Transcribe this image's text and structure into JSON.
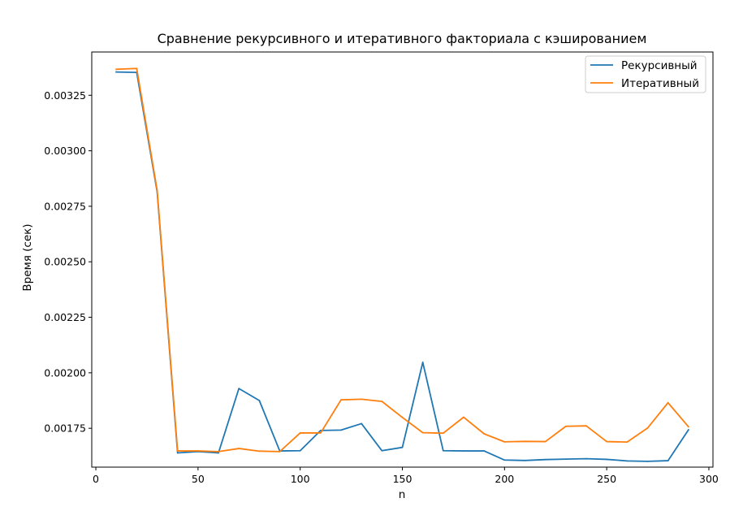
{
  "chart_data": {
    "type": "line",
    "title": "Сравнение рекурсивного и итеративного факториала с кэшированием",
    "xlabel": "n",
    "ylabel": "Время (сек)",
    "xlim": [
      -2,
      302
    ],
    "ylim": [
      0.001575,
      0.003445
    ],
    "x_ticks": [
      0,
      50,
      100,
      150,
      200,
      250,
      300
    ],
    "x_tick_labels": [
      "0",
      "50",
      "100",
      "150",
      "200",
      "250",
      "300"
    ],
    "y_ticks": [
      0.00175,
      0.002,
      0.00225,
      0.0025,
      0.00275,
      0.003,
      0.00325
    ],
    "y_tick_labels": [
      "0.00175",
      "0.00200",
      "0.00225",
      "0.00250",
      "0.00275",
      "0.00300",
      "0.00325"
    ],
    "grid": false,
    "legend_position": "top-right",
    "x": [
      10,
      20,
      30,
      40,
      50,
      60,
      70,
      80,
      90,
      100,
      110,
      120,
      130,
      140,
      150,
      160,
      170,
      180,
      190,
      200,
      210,
      220,
      230,
      240,
      250,
      260,
      270,
      280,
      290
    ],
    "series": [
      {
        "name": "Рекурсивный",
        "color": "#1f77b4",
        "values": [
          0.003355,
          0.003353,
          0.002815,
          0.001639,
          0.001645,
          0.001639,
          0.001929,
          0.001875,
          0.001648,
          0.001649,
          0.00174,
          0.001742,
          0.001771,
          0.001649,
          0.001664,
          0.002047,
          0.001649,
          0.001648,
          0.001648,
          0.001607,
          0.001605,
          0.001609,
          0.001611,
          0.001613,
          0.00161,
          0.001603,
          0.001601,
          0.001604,
          0.001743
        ]
      },
      {
        "name": "Итеративный",
        "color": "#ff7f0e",
        "values": [
          0.003367,
          0.003371,
          0.002822,
          0.001648,
          0.001648,
          0.001645,
          0.001659,
          0.001647,
          0.001645,
          0.001729,
          0.001729,
          0.001878,
          0.001881,
          0.001871,
          0.001799,
          0.00173,
          0.001728,
          0.0018,
          0.001725,
          0.001689,
          0.001691,
          0.00169,
          0.001759,
          0.001761,
          0.00169,
          0.001688,
          0.001751,
          0.001865,
          0.001757
        ]
      }
    ]
  }
}
